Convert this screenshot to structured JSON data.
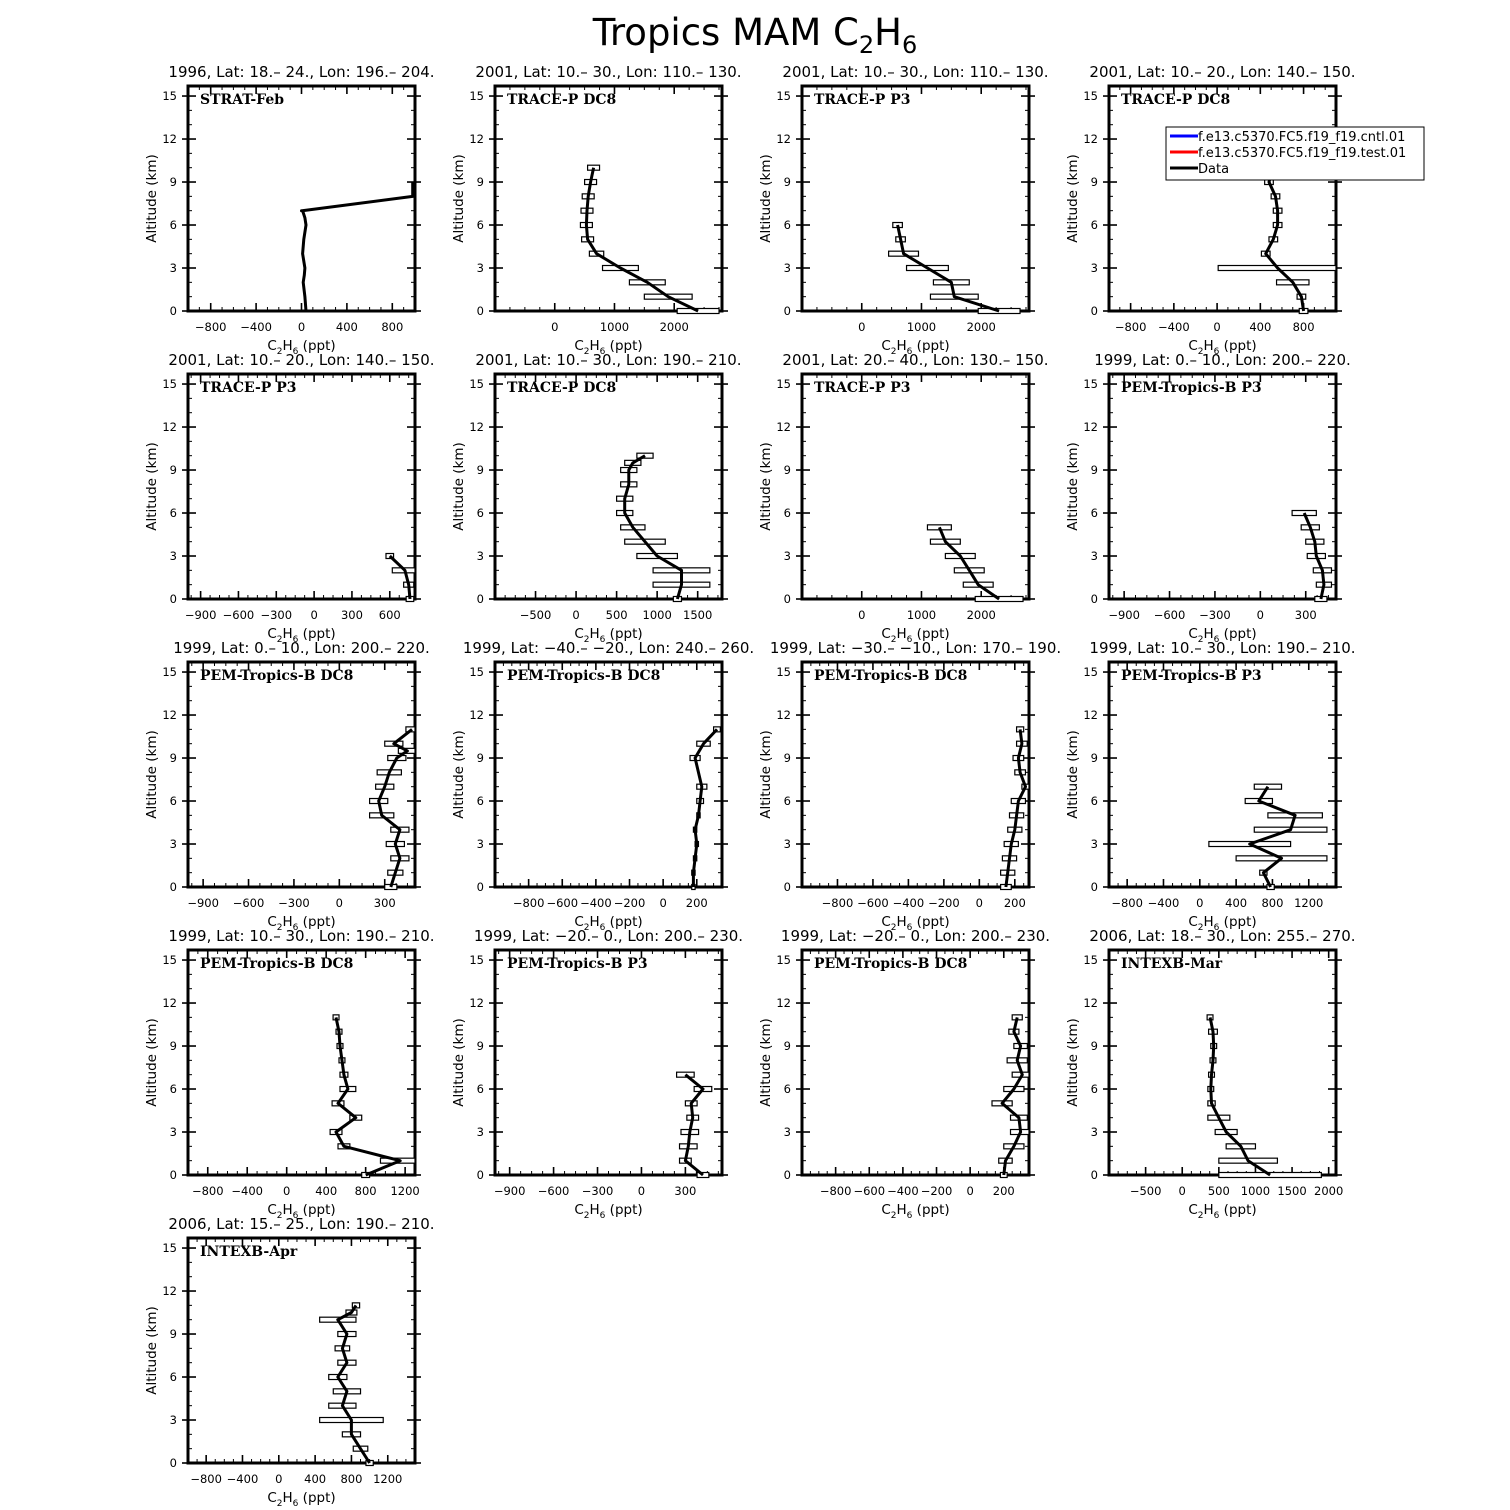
{
  "figure": {
    "title_main": "Tropics MAM C",
    "title_sub1": "2",
    "title_mid": "H",
    "title_sub2": "6"
  },
  "legend": [
    {
      "label": "f.e13.c5370.FC5.f19_f19.cntl.01",
      "color": "#0000ff"
    },
    {
      "label": "f.e13.c5370.FC5.f19_f19.test.01",
      "color": "#ff0000"
    },
    {
      "label": "Data",
      "color": "#000000"
    }
  ],
  "chart_data": [
    {
      "type": "line",
      "subtitle": "1996, Lat: 18.– 24., Lon: 196.– 204.",
      "label": "STRAT-Feb",
      "xlabel": "C2H6 (ppt)",
      "ylabel": "Altitude (km)",
      "xlim": [
        -1000,
        1000
      ],
      "xticks": [
        -800,
        -400,
        0,
        400,
        800
      ],
      "ylim": [
        0,
        15.7
      ],
      "yticks": [
        0,
        3,
        6,
        9,
        12,
        15
      ],
      "x": [
        40,
        30,
        15,
        25,
        30,
        10,
        20,
        40,
        30,
        10,
        0,
        20,
        5,
        980,
        980
      ],
      "y": [
        0,
        1,
        2,
        2.5,
        3,
        4,
        5,
        6,
        6.5,
        7,
        7,
        7,
        7,
        8,
        9
      ],
      "err": []
    },
    {
      "type": "line",
      "subtitle": "2001, Lat: 10.– 30., Lon: 110.– 130.",
      "label": "TRACE-P DC8",
      "xlabel": "C2H6 (ppt)",
      "ylabel": "Altitude (km)",
      "xlim": [
        -1000,
        2800
      ],
      "xticks": [
        0,
        1000,
        2000
      ],
      "ylim": [
        0,
        15.7
      ],
      "yticks": [
        0,
        3,
        6,
        9,
        12,
        15
      ],
      "x": [
        2400,
        1900,
        1550,
        1100,
        700,
        550,
        530,
        540,
        560,
        600,
        650
      ],
      "y": [
        0,
        1,
        2,
        3,
        4,
        5,
        6,
        7,
        8,
        9,
        10
      ],
      "err": [
        350,
        400,
        300,
        300,
        120,
        100,
        100,
        100,
        100,
        100,
        100
      ]
    },
    {
      "type": "line",
      "subtitle": "2001, Lat: 10.– 30., Lon: 110.– 130.",
      "label": "TRACE-P P3",
      "xlabel": "C2H6 (ppt)",
      "ylabel": "Altitude (km)",
      "xlim": [
        -1000,
        2800
      ],
      "xticks": [
        0,
        1000,
        2000
      ],
      "ylim": [
        0,
        15.7
      ],
      "yticks": [
        0,
        3,
        6,
        9,
        12,
        15
      ],
      "x": [
        2300,
        1550,
        1500,
        1100,
        700,
        650,
        600
      ],
      "y": [
        0,
        1,
        2,
        3,
        4,
        5,
        6
      ],
      "err": [
        350,
        400,
        300,
        350,
        250,
        80,
        80
      ]
    },
    {
      "type": "line",
      "subtitle": "2001, Lat: 10.– 20., Lon: 140.– 150.",
      "label": "TRACE-P DC8",
      "xlabel": "C2H6 (ppt)",
      "ylabel": "Altitude (km)",
      "xlim": [
        -1000,
        1100
      ],
      "xticks": [
        -800,
        -400,
        0,
        400,
        800
      ],
      "ylim": [
        0,
        15.7
      ],
      "yticks": [
        0,
        3,
        6,
        9,
        12,
        15
      ],
      "x": [
        800,
        780,
        700,
        560,
        450,
        520,
        560,
        560,
        540,
        480,
        500,
        560
      ],
      "y": [
        0,
        1,
        2,
        3,
        4,
        5,
        6,
        7,
        8,
        9,
        9.5,
        10
      ],
      "err": [
        40,
        40,
        150,
        550,
        40,
        40,
        40,
        40,
        40,
        40,
        40,
        40
      ]
    },
    {
      "type": "line",
      "subtitle": "2001, Lat: 10.– 20., Lon: 140.– 150.",
      "label": "TRACE-P P3",
      "xlabel": "C2H6 (ppt)",
      "ylabel": "Altitude (km)",
      "xlim": [
        -1000,
        800
      ],
      "xticks": [
        -900,
        -600,
        -300,
        0,
        300,
        600
      ],
      "ylim": [
        0,
        15.7
      ],
      "yticks": [
        0,
        3,
        6,
        9,
        12,
        15
      ],
      "x": [
        760,
        750,
        720,
        600
      ],
      "y": [
        0,
        1,
        2,
        3
      ],
      "err": [
        30,
        40,
        100,
        30
      ]
    },
    {
      "type": "line",
      "subtitle": "2001, Lat: 10.– 30., Lon: 190.– 210.",
      "label": "TRACE-P DC8",
      "xlabel": "C2H6 (ppt)",
      "ylabel": "Altitude (km)",
      "xlim": [
        -1000,
        1800
      ],
      "xticks": [
        -500,
        0,
        500,
        1000,
        1500
      ],
      "ylim": [
        0,
        15.7
      ],
      "yticks": [
        0,
        3,
        6,
        9,
        12,
        15
      ],
      "x": [
        1250,
        1300,
        1300,
        1000,
        850,
        700,
        600,
        600,
        650,
        650,
        700,
        850
      ],
      "y": [
        0,
        1,
        2,
        3,
        4,
        5,
        6,
        7,
        8,
        9,
        9.5,
        10
      ],
      "err": [
        50,
        350,
        350,
        250,
        250,
        150,
        100,
        100,
        100,
        100,
        100,
        100
      ]
    },
    {
      "type": "line",
      "subtitle": "2001, Lat: 20.– 40., Lon: 130.– 150.",
      "label": "TRACE-P P3",
      "xlabel": "C2H6 (ppt)",
      "ylabel": "Altitude (km)",
      "xlim": [
        -1000,
        2800
      ],
      "xticks": [
        0,
        1000,
        2000
      ],
      "ylim": [
        0,
        15.7
      ],
      "yticks": [
        0,
        3,
        6,
        9,
        12,
        15
      ],
      "x": [
        2300,
        1950,
        1800,
        1650,
        1400,
        1300
      ],
      "y": [
        0,
        1,
        2,
        3,
        4,
        5
      ],
      "err": [
        400,
        250,
        250,
        250,
        250,
        200
      ]
    },
    {
      "type": "line",
      "subtitle": "1999, Lat: 0.– 10., Lon: 200.– 220.",
      "label": "PEM-Tropics-B P3",
      "xlabel": "C2H6 (ppt)",
      "ylabel": "Altitude (km)",
      "xlim": [
        -1000,
        500
      ],
      "xticks": [
        -900,
        -600,
        -300,
        0,
        300
      ],
      "ylim": [
        0,
        15.7
      ],
      "yticks": [
        0,
        3,
        6,
        9,
        12,
        15
      ],
      "x": [
        400,
        420,
        410,
        370,
        360,
        330,
        290
      ],
      "y": [
        0,
        1,
        2,
        3,
        4,
        5,
        6
      ],
      "err": [
        40,
        50,
        60,
        60,
        60,
        60,
        80
      ]
    },
    {
      "type": "line",
      "subtitle": "1999, Lat: 0.– 10., Lon: 200.– 220.",
      "label": "PEM-Tropics-B DC8",
      "xlabel": "C2H6 (ppt)",
      "ylabel": "Altitude (km)",
      "xlim": [
        -1000,
        500
      ],
      "xticks": [
        -900,
        -600,
        -300,
        0,
        300
      ],
      "ylim": [
        0,
        15.7
      ],
      "yticks": [
        0,
        3,
        6,
        9,
        12,
        15
      ],
      "x": [
        340,
        370,
        400,
        370,
        400,
        280,
        260,
        300,
        330,
        380,
        450,
        360,
        480
      ],
      "y": [
        0,
        1,
        2,
        3,
        4,
        5,
        6,
        7,
        8,
        9,
        9.5,
        10,
        11
      ],
      "err": [
        40,
        50,
        60,
        60,
        60,
        80,
        60,
        60,
        80,
        60,
        60,
        60,
        40
      ]
    },
    {
      "type": "line",
      "subtitle": "1999, Lat: −40.– −20., Lon: 240.– 260.",
      "label": "PEM-Tropics-B DC8",
      "xlabel": "C2H6 (ppt)",
      "ylabel": "Altitude (km)",
      "xlim": [
        -1000,
        350
      ],
      "xticks": [
        -800,
        -600,
        -400,
        -200,
        0,
        200
      ],
      "ylim": [
        0,
        15.7
      ],
      "yticks": [
        0,
        3,
        6,
        9,
        12,
        15
      ],
      "x": [
        180,
        180,
        190,
        200,
        190,
        210,
        220,
        230,
        190,
        240,
        320
      ],
      "y": [
        0,
        1,
        2,
        3,
        4,
        5,
        6,
        7,
        9,
        10,
        11
      ],
      "err": [
        10,
        10,
        10,
        10,
        10,
        10,
        20,
        30,
        30,
        40,
        20
      ]
    },
    {
      "type": "line",
      "subtitle": "1999, Lat: −30.– −10., Lon: 170.– 190.",
      "label": "PEM-Tropics-B DC8",
      "xlabel": "C2H6 (ppt)",
      "ylabel": "Altitude (km)",
      "xlim": [
        -1000,
        280
      ],
      "xticks": [
        -800,
        -600,
        -400,
        -200,
        0,
        200
      ],
      "ylim": [
        0,
        15.7
      ],
      "yticks": [
        0,
        3,
        6,
        9,
        12,
        15
      ],
      "x": [
        150,
        160,
        170,
        180,
        200,
        210,
        220,
        260,
        230,
        220,
        240,
        230
      ],
      "y": [
        0,
        1,
        2,
        3,
        4,
        5,
        6,
        7,
        8,
        9,
        10,
        11
      ],
      "err": [
        30,
        40,
        40,
        40,
        40,
        40,
        40,
        20,
        30,
        30,
        30,
        20
      ]
    },
    {
      "type": "line",
      "subtitle": "1999, Lat: 10.– 30., Lon: 190.– 210.",
      "label": "PEM-Tropics-B P3",
      "xlabel": "C2H6 (ppt)",
      "ylabel": "Altitude (km)",
      "xlim": [
        -1000,
        1500
      ],
      "xticks": [
        -800,
        -400,
        0,
        400,
        800,
        1200
      ],
      "ylim": [
        0,
        15.7
      ],
      "yticks": [
        0,
        3,
        6,
        9,
        12,
        15
      ],
      "x": [
        780,
        700,
        900,
        550,
        1000,
        1050,
        650,
        750
      ],
      "y": [
        0,
        1,
        2,
        3,
        4,
        5,
        6,
        7
      ],
      "err": [
        40,
        40,
        500,
        450,
        400,
        300,
        150,
        150
      ]
    },
    {
      "type": "line",
      "subtitle": "1999, Lat: 10.– 30., Lon: 190.– 210.",
      "label": "PEM-Tropics-B DC8",
      "xlabel": "C2H6 (ppt)",
      "ylabel": "Altitude (km)",
      "xlim": [
        -1000,
        1300
      ],
      "xticks": [
        -800,
        -400,
        0,
        400,
        800,
        1200
      ],
      "ylim": [
        0,
        15.7
      ],
      "yticks": [
        0,
        3,
        6,
        9,
        12,
        15
      ],
      "x": [
        800,
        1150,
        580,
        500,
        700,
        520,
        620,
        580,
        560,
        540,
        530,
        500
      ],
      "y": [
        0,
        1,
        2,
        3,
        4,
        5,
        6,
        7,
        8,
        9,
        10,
        11
      ],
      "err": [
        40,
        200,
        60,
        60,
        60,
        60,
        80,
        40,
        30,
        30,
        30,
        30
      ]
    },
    {
      "type": "line",
      "subtitle": "1999, Lat: −20.– 0., Lon: 200.– 230.",
      "label": "PEM-Tropics-B P3",
      "xlabel": "C2H6 (ppt)",
      "ylabel": "Altitude (km)",
      "xlim": [
        -1000,
        550
      ],
      "xticks": [
        -900,
        -600,
        -300,
        0,
        300
      ],
      "ylim": [
        0,
        15.7
      ],
      "yticks": [
        0,
        3,
        6,
        9,
        12,
        15
      ],
      "x": [
        420,
        300,
        320,
        330,
        350,
        340,
        420,
        300
      ],
      "y": [
        0,
        1,
        2,
        3,
        4,
        5,
        6,
        7
      ],
      "err": [
        40,
        40,
        60,
        60,
        40,
        40,
        60,
        60
      ]
    },
    {
      "type": "line",
      "subtitle": "1999, Lat: −20.– 0., Lon: 200.– 230.",
      "label": "PEM-Tropics-B DC8",
      "xlabel": "C2H6 (ppt)",
      "ylabel": "Altitude (km)",
      "xlim": [
        -1000,
        350
      ],
      "xticks": [
        -800,
        -600,
        -400,
        -200,
        0,
        200
      ],
      "ylim": [
        0,
        15.7
      ],
      "yticks": [
        0,
        3,
        6,
        9,
        12,
        15
      ],
      "x": [
        200,
        210,
        260,
        300,
        290,
        190,
        260,
        310,
        280,
        300,
        260,
        280
      ],
      "y": [
        0,
        1,
        2,
        3,
        4,
        5,
        6,
        7,
        8,
        9,
        10,
        11
      ],
      "err": [
        20,
        40,
        60,
        60,
        50,
        60,
        60,
        60,
        60,
        40,
        30,
        30
      ]
    },
    {
      "type": "line",
      "subtitle": "2006, Lat: 18.– 30., Lon: 255.– 270.",
      "label": "INTEXB-Mar",
      "xlabel": "C2H6 (ppt)",
      "ylabel": "Altitude (km)",
      "xlim": [
        -1000,
        2100
      ],
      "xticks": [
        -500,
        0,
        500,
        1000,
        1500,
        2000
      ],
      "ylim": [
        0,
        15.7
      ],
      "yticks": [
        0,
        3,
        6,
        9,
        12,
        15
      ],
      "x": [
        1200,
        900,
        800,
        600,
        500,
        400,
        390,
        400,
        420,
        430,
        420,
        380
      ],
      "y": [
        0,
        1,
        2,
        3,
        4,
        5,
        6,
        7,
        8,
        9,
        10,
        11
      ],
      "err": [
        700,
        400,
        200,
        150,
        150,
        50,
        40,
        40,
        40,
        40,
        60,
        40
      ]
    },
    {
      "type": "line",
      "subtitle": "2006, Lat: 15.– 25., Lon: 190.– 210.",
      "label": "INTEXB-Apr",
      "xlabel": "C2H6 (ppt)",
      "ylabel": "Altitude (km)",
      "xlim": [
        -1000,
        1500
      ],
      "xticks": [
        -800,
        -400,
        0,
        400,
        800,
        1200
      ],
      "ylim": [
        0,
        15.7
      ],
      "yticks": [
        0,
        3,
        6,
        9,
        12,
        15
      ],
      "x": [
        1000,
        900,
        800,
        800,
        700,
        750,
        650,
        750,
        700,
        750,
        650,
        800,
        850
      ],
      "y": [
        0,
        1,
        2,
        3,
        4,
        5,
        6,
        7,
        8,
        9,
        10,
        10.5,
        11
      ],
      "err": [
        40,
        80,
        100,
        350,
        150,
        150,
        100,
        100,
        80,
        100,
        200,
        60,
        40
      ]
    }
  ]
}
